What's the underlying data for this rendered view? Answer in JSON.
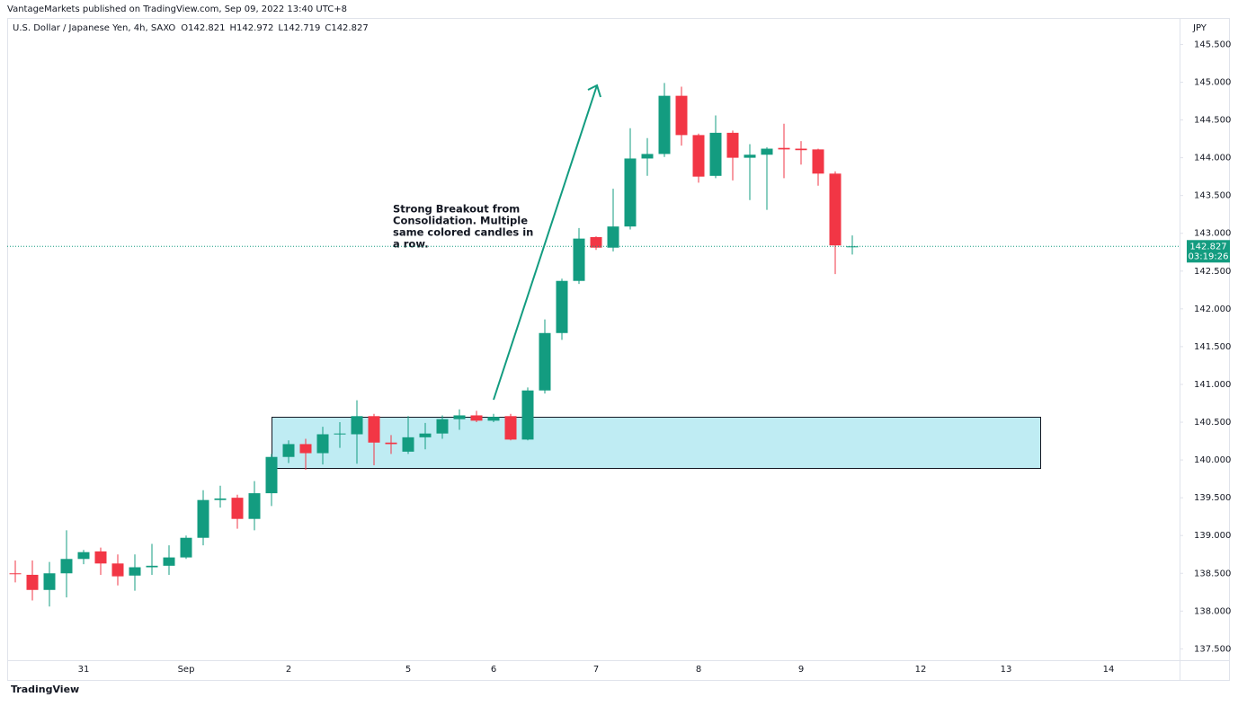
{
  "chart_data": {
    "type": "candlestick",
    "publisher": "VantageMarkets published on TradingView.com, Sep 09, 2022 13:40 UTC+8",
    "title": "U.S. Dollar / Japanese Yen, 4h, SAXO",
    "ohlc_prefixes": [
      "O",
      "H",
      "L",
      "C"
    ],
    "currency": "JPY",
    "countdown": "03:19:26",
    "branding": "TradingView",
    "annotation": [
      "Strong Breakout from",
      "Consolidation. Multiple",
      "same colored candles in",
      "a row."
    ],
    "up_color": "#139c80",
    "down_color": "#f23645",
    "categories": [
      null,
      null,
      null,
      null,
      "31",
      null,
      null,
      null,
      null,
      null,
      "Sep",
      null,
      null,
      null,
      null,
      null,
      "2",
      null,
      null,
      null,
      null,
      null,
      null,
      "5",
      null,
      null,
      null,
      null,
      "6",
      null,
      null,
      null,
      null,
      null,
      "7",
      null,
      null,
      null,
      null,
      null,
      "8",
      null,
      null,
      null,
      null,
      null,
      "9",
      null,
      null,
      null
    ],
    "future_categories": [
      "12",
      "13",
      "14"
    ],
    "open": [
      138.5,
      138.48,
      138.28,
      138.5,
      138.69,
      138.79,
      138.63,
      138.47,
      138.58,
      138.6,
      138.71,
      138.97,
      139.47,
      139.5,
      139.22,
      139.56,
      140.04,
      140.21,
      140.09,
      140.34,
      140.34,
      140.58,
      140.23,
      140.11,
      140.3,
      140.35,
      140.54,
      140.59,
      140.52,
      140.58,
      140.27,
      140.92,
      141.68,
      142.37,
      142.95,
      142.81,
      143.09,
      143.99,
      144.05,
      144.82,
      144.3,
      143.76,
      144.33,
      144.0,
      144.04,
      144.13,
      144.12,
      144.11,
      143.79,
      142.821
    ],
    "high": [
      138.67,
      138.67,
      138.65,
      139.07,
      138.81,
      138.84,
      138.75,
      138.75,
      138.89,
      138.87,
      139.0,
      139.6,
      139.66,
      139.54,
      139.72,
      140.08,
      140.26,
      140.28,
      140.44,
      140.5,
      140.79,
      140.61,
      140.33,
      140.58,
      140.49,
      140.59,
      140.67,
      140.65,
      140.61,
      140.61,
      140.96,
      141.86,
      142.4,
      143.07,
      142.96,
      143.59,
      144.39,
      144.26,
      144.99,
      144.94,
      144.32,
      144.56,
      144.36,
      144.18,
      144.14,
      144.45,
      144.22,
      144.12,
      143.82,
      142.972
    ],
    "low": [
      138.38,
      138.14,
      138.06,
      138.18,
      138.62,
      138.48,
      138.34,
      138.27,
      138.48,
      138.48,
      138.69,
      138.87,
      139.37,
      139.09,
      139.07,
      139.39,
      139.96,
      139.87,
      139.94,
      140.16,
      139.95,
      139.93,
      140.08,
      140.08,
      140.14,
      140.28,
      140.4,
      140.5,
      140.5,
      140.26,
      140.26,
      140.88,
      141.59,
      142.33,
      142.78,
      142.76,
      143.05,
      143.76,
      144.01,
      144.16,
      143.67,
      143.73,
      143.7,
      143.44,
      143.31,
      143.73,
      143.91,
      143.63,
      142.46,
      142.719
    ],
    "close": [
      138.49,
      138.28,
      138.5,
      138.69,
      138.78,
      138.63,
      138.46,
      138.58,
      138.6,
      138.71,
      138.97,
      139.47,
      139.49,
      139.22,
      139.56,
      140.04,
      140.21,
      140.09,
      140.34,
      140.35,
      140.58,
      140.23,
      140.21,
      140.3,
      140.35,
      140.54,
      140.59,
      140.52,
      140.57,
      140.27,
      140.92,
      141.68,
      142.37,
      142.93,
      142.81,
      143.09,
      143.99,
      144.05,
      144.82,
      144.3,
      143.75,
      144.33,
      144.0,
      144.04,
      144.12,
      144.11,
      144.1,
      143.79,
      142.84,
      142.827
    ],
    "ylim": [
      137.35,
      145.85
    ],
    "yticks": [
      {
        "value": 137.5,
        "label": "137.500"
      },
      {
        "value": 138,
        "label": "138.000"
      },
      {
        "value": 138.5,
        "label": "138.500"
      },
      {
        "value": 139,
        "label": "139.000"
      },
      {
        "value": 139.5,
        "label": "139.500"
      },
      {
        "value": 140,
        "label": "140.000"
      },
      {
        "value": 140.5,
        "label": "140.500"
      },
      {
        "value": 141,
        "label": "141.000"
      },
      {
        "value": 141.5,
        "label": "141.500"
      },
      {
        "value": 142,
        "label": "142.000"
      },
      {
        "value": 142.5,
        "label": "142.500"
      },
      {
        "value": 143,
        "label": "143.000"
      },
      {
        "value": 143.5,
        "label": "143.500"
      },
      {
        "value": 144,
        "label": "144.000"
      },
      {
        "value": 144.5,
        "label": "144.500"
      },
      {
        "value": 145,
        "label": "145.000"
      },
      {
        "value": 145.5,
        "label": "145.500"
      }
    ]
  }
}
